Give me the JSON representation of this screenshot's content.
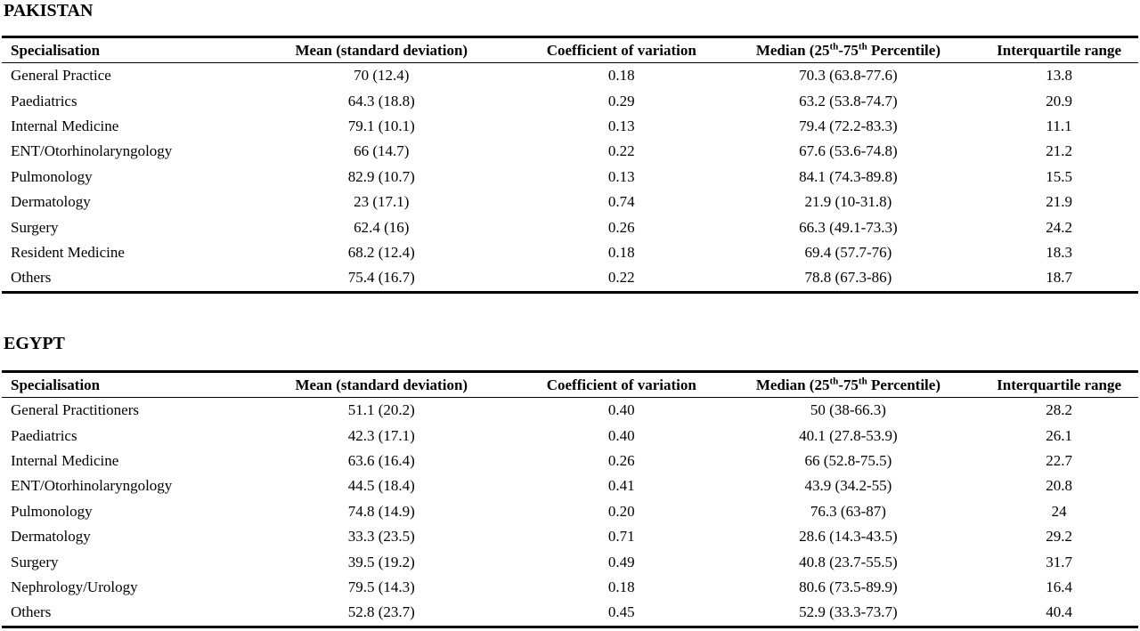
{
  "columns": {
    "specialisation": "Specialisation",
    "mean": "Mean (standard deviation)",
    "cv": "Coefficient of variation",
    "median_prefix": "Median (25",
    "median_sup1": "th",
    "median_mid": "-75",
    "median_sup2": "th",
    "median_suffix": " Percentile)",
    "iqr": "Interquartile range"
  },
  "pakistan": {
    "title": "PAKISTAN",
    "rows": [
      {
        "spec": "General Practice",
        "mean": "70 (12.4)",
        "cv": "0.18",
        "median": "70.3 (63.8-77.6)",
        "iqr": "13.8"
      },
      {
        "spec": "Paediatrics",
        "mean": "64.3 (18.8)",
        "cv": "0.29",
        "median": "63.2 (53.8-74.7)",
        "iqr": "20.9"
      },
      {
        "spec": "Internal Medicine",
        "mean": "79.1 (10.1)",
        "cv": "0.13",
        "median": "79.4 (72.2-83.3)",
        "iqr": "11.1"
      },
      {
        "spec": "ENT/Otorhinolaryngology",
        "mean": "66 (14.7)",
        "cv": "0.22",
        "median": "67.6 (53.6-74.8)",
        "iqr": "21.2"
      },
      {
        "spec": "Pulmonology",
        "mean": "82.9 (10.7)",
        "cv": "0.13",
        "median": "84.1 (74.3-89.8)",
        "iqr": "15.5"
      },
      {
        "spec": "Dermatology",
        "mean": "23 (17.1)",
        "cv": "0.74",
        "median": "21.9 (10-31.8)",
        "iqr": "21.9"
      },
      {
        "spec": "Surgery",
        "mean": "62.4 (16)",
        "cv": "0.26",
        "median": "66.3 (49.1-73.3)",
        "iqr": "24.2"
      },
      {
        "spec": "Resident Medicine",
        "mean": "68.2 (12.4)",
        "cv": "0.18",
        "median": "69.4 (57.7-76)",
        "iqr": "18.3"
      },
      {
        "spec": "Others",
        "mean": "75.4 (16.7)",
        "cv": "0.22",
        "median": "78.8 (67.3-86)",
        "iqr": "18.7"
      }
    ]
  },
  "egypt": {
    "title": "EGYPT",
    "rows": [
      {
        "spec": "General Practitioners",
        "mean": "51.1 (20.2)",
        "cv": "0.40",
        "median": "50 (38-66.3)",
        "iqr": "28.2"
      },
      {
        "spec": "Paediatrics",
        "mean": "42.3 (17.1)",
        "cv": "0.40",
        "median": "40.1 (27.8-53.9)",
        "iqr": "26.1"
      },
      {
        "spec": "Internal Medicine",
        "mean": "63.6 (16.4)",
        "cv": "0.26",
        "median": "66 (52.8-75.5)",
        "iqr": "22.7"
      },
      {
        "spec": "ENT/Otorhinolaryngology",
        "mean": "44.5 (18.4)",
        "cv": "0.41",
        "median": "43.9 (34.2-55)",
        "iqr": "20.8"
      },
      {
        "spec": "Pulmonology",
        "mean": "74.8 (14.9)",
        "cv": "0.20",
        "median": "76.3 (63-87)",
        "iqr": "24"
      },
      {
        "spec": "Dermatology",
        "mean": "33.3 (23.5)",
        "cv": "0.71",
        "median": "28.6 (14.3-43.5)",
        "iqr": "29.2"
      },
      {
        "spec": "Surgery",
        "mean": "39.5 (19.2)",
        "cv": "0.49",
        "median": "40.8 (23.7-55.5)",
        "iqr": "31.7"
      },
      {
        "spec": "Nephrology/Urology",
        "mean": "79.5 (14.3)",
        "cv": "0.18",
        "median": "80.6 (73.5-89.9)",
        "iqr": "16.4"
      },
      {
        "spec": "Others",
        "mean": "52.8 (23.7)",
        "cv": "0.45",
        "median": "52.9 (33.3-73.7)",
        "iqr": "40.4"
      }
    ]
  }
}
